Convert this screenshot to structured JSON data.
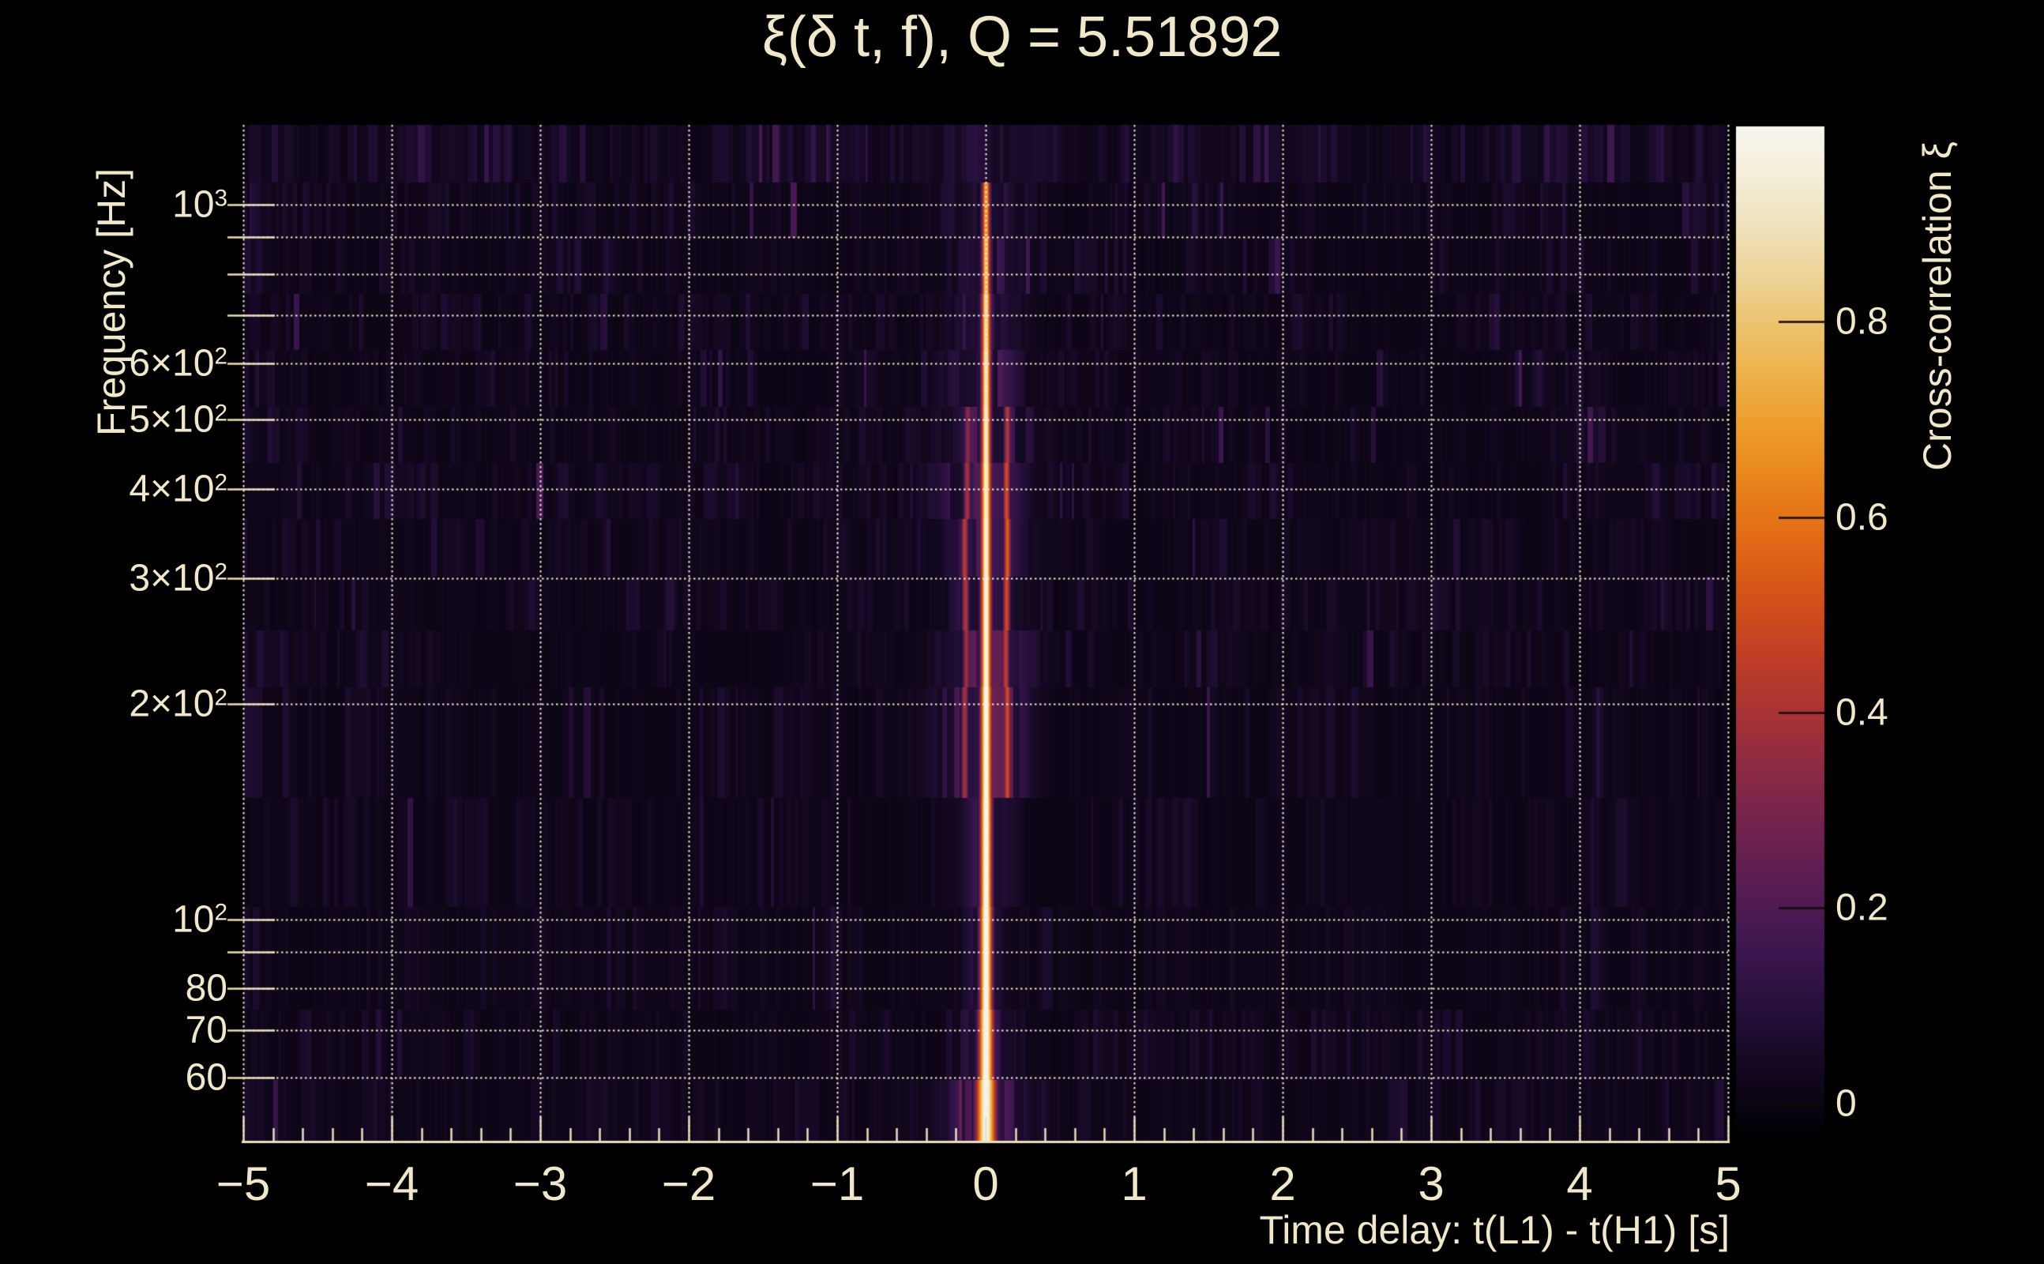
{
  "colors": {
    "background": "#000000",
    "text": "#f1e8cb",
    "grid": "#f4ecd2",
    "axis": "#eadfbd",
    "colorbar_tick": "#140a04"
  },
  "chart_data": {
    "type": "heatmap",
    "title": "ξ(δ t, f), Q = 5.51892",
    "q_value": 5.51892,
    "xlabel": "Time delay: t(L1) - t(H1) [s]",
    "ylabel": "Frequency [Hz]",
    "colorbar_label": "Cross-correlation ξ",
    "x_range": [
      -5,
      5
    ],
    "x_minor_step": 0.2,
    "x_ticks": [
      {
        "v": -5,
        "label": "−5"
      },
      {
        "v": -4,
        "label": "−4"
      },
      {
        "v": -3,
        "label": "−3"
      },
      {
        "v": -2,
        "label": "−2"
      },
      {
        "v": -1,
        "label": "−1"
      },
      {
        "v": 0,
        "label": "0"
      },
      {
        "v": 1,
        "label": "1"
      },
      {
        "v": 2,
        "label": "2"
      },
      {
        "v": 3,
        "label": "3"
      },
      {
        "v": 4,
        "label": "4"
      },
      {
        "v": 5,
        "label": "5"
      }
    ],
    "y_scale": "log",
    "y_range_hz": [
      49,
      1293
    ],
    "y_labeled_ticks": [
      {
        "f": 1000,
        "base": "10",
        "sup": "3"
      },
      {
        "f": 600,
        "base": "6×10",
        "sup": "2"
      },
      {
        "f": 500,
        "base": "5×10",
        "sup": "2"
      },
      {
        "f": 400,
        "base": "4×10",
        "sup": "2"
      },
      {
        "f": 300,
        "base": "3×10",
        "sup": "2"
      },
      {
        "f": 200,
        "base": "2×10",
        "sup": "2"
      },
      {
        "f": 100,
        "base": "10",
        "sup": "2"
      },
      {
        "f": 80,
        "base": "80",
        "sup": ""
      },
      {
        "f": 70,
        "base": "70",
        "sup": ""
      },
      {
        "f": 60,
        "base": "60",
        "sup": ""
      }
    ],
    "y_grid_hz": [
      60,
      70,
      80,
      90,
      100,
      200,
      300,
      400,
      500,
      600,
      700,
      800,
      900,
      1000
    ],
    "colorbar": {
      "vmin": -0.035,
      "vmax": 1.0,
      "ticks": [
        {
          "v": 0,
          "label": "0"
        },
        {
          "v": 0.2,
          "label": "0.2"
        },
        {
          "v": 0.4,
          "label": "0.4"
        },
        {
          "v": 0.6,
          "label": "0.6"
        },
        {
          "v": 0.8,
          "label": "0.8"
        }
      ]
    },
    "palette_stops": [
      {
        "v": -0.035,
        "c": "#000001"
      },
      {
        "v": 0.0,
        "c": "#0b0513"
      },
      {
        "v": 0.05,
        "c": "#170a27"
      },
      {
        "v": 0.1,
        "c": "#27103c"
      },
      {
        "v": 0.15,
        "c": "#3a164e"
      },
      {
        "v": 0.2,
        "c": "#4f1b53"
      },
      {
        "v": 0.25,
        "c": "#642051"
      },
      {
        "v": 0.3,
        "c": "#7a254c"
      },
      {
        "v": 0.35,
        "c": "#902b42"
      },
      {
        "v": 0.4,
        "c": "#a83336"
      },
      {
        "v": 0.45,
        "c": "#bd3d27"
      },
      {
        "v": 0.5,
        "c": "#cf4c1c"
      },
      {
        "v": 0.55,
        "c": "#dc5f16"
      },
      {
        "v": 0.6,
        "c": "#e57417"
      },
      {
        "v": 0.65,
        "c": "#ea8a1e"
      },
      {
        "v": 0.7,
        "c": "#eda02f"
      },
      {
        "v": 0.75,
        "c": "#eeb34e"
      },
      {
        "v": 0.8,
        "c": "#ecc472"
      },
      {
        "v": 0.85,
        "c": "#edd59a"
      },
      {
        "v": 0.9,
        "c": "#f0e3bd"
      },
      {
        "v": 0.95,
        "c": "#f4eeda"
      },
      {
        "v": 1.0,
        "c": "#f7f5f0"
      }
    ],
    "peak": {
      "time_delay_s": 0.0,
      "xi_max": 1.0,
      "extent_hz": [
        50,
        1290
      ],
      "description": "Narrow bright cross-correlation ridge at zero time delay spanning the full frequency band; background xi ~ 0-0.1 with Q-transform tile noise; faint satellite ridges near ±0.14 s between ~150-500 Hz."
    },
    "render": {
      "seed": 20,
      "rows": [
        {
          "y0": 158,
          "y1": 231,
          "base": 0.055,
          "hw": 95,
          "haze": 0.085,
          "core": 0.0,
          "sig": 6,
          "sats": []
        },
        {
          "y0": 231,
          "y1": 301,
          "base": 0.03,
          "hw": 62,
          "haze": 0.11,
          "core": 0.62,
          "sig": 5.5,
          "sats": []
        },
        {
          "y0": 301,
          "y1": 372,
          "base": 0.028,
          "hw": 45,
          "haze": 0.13,
          "core": 0.72,
          "sig": 5.5,
          "sats": []
        },
        {
          "y0": 372,
          "y1": 443,
          "base": 0.028,
          "hw": 42,
          "haze": 0.15,
          "core": 0.8,
          "sig": 6,
          "sats": []
        },
        {
          "y0": 443,
          "y1": 515,
          "base": 0.028,
          "hw": 50,
          "haze": 0.17,
          "core": 0.84,
          "sig": 6,
          "sats": []
        },
        {
          "y0": 515,
          "y1": 586,
          "base": 0.03,
          "hw": 55,
          "haze": 0.19,
          "core": 0.86,
          "sig": 6,
          "sats": [
            [
              27,
              0.42
            ],
            [
              -23,
              0.34
            ]
          ]
        },
        {
          "y0": 586,
          "y1": 657,
          "base": 0.032,
          "hw": 60,
          "haze": 0.21,
          "core": 0.88,
          "sig": 6.5,
          "sats": [
            [
              26,
              0.5
            ],
            [
              -24,
              0.4
            ]
          ]
        },
        {
          "y0": 657,
          "y1": 730,
          "base": 0.03,
          "hw": 48,
          "haze": 0.19,
          "core": 0.9,
          "sig": 6.5,
          "sats": [
            [
              27,
              0.55
            ],
            [
              -27,
              0.45
            ]
          ]
        },
        {
          "y0": 730,
          "y1": 798,
          "base": 0.028,
          "hw": 42,
          "haze": 0.17,
          "core": 0.92,
          "sig": 6.5,
          "sats": [
            [
              26,
              0.5
            ],
            [
              -26,
              0.42
            ]
          ]
        },
        {
          "y0": 798,
          "y1": 870,
          "base": 0.028,
          "hw": 58,
          "haze": 0.2,
          "core": 0.92,
          "sig": 6.5,
          "sats": [
            [
              25,
              0.46
            ],
            [
              -25,
              0.38
            ]
          ]
        },
        {
          "y0": 870,
          "y1": 1010,
          "base": 0.028,
          "hw": 52,
          "haze": 0.26,
          "core": 0.95,
          "sig": 7,
          "sats": [
            [
              27,
              0.5
            ],
            [
              -27,
              0.4
            ]
          ]
        },
        {
          "y0": 1010,
          "y1": 1148,
          "base": 0.024,
          "hw": 36,
          "haze": 0.14,
          "core": 0.99,
          "sig": 7,
          "sats": []
        },
        {
          "y0": 1148,
          "y1": 1278,
          "base": 0.024,
          "hw": 30,
          "haze": 0.11,
          "core": 1.0,
          "sig": 7.5,
          "sats": []
        },
        {
          "y0": 1278,
          "y1": 1367,
          "base": 0.028,
          "hw": 34,
          "haze": 0.16,
          "core": 1.0,
          "sig": 9,
          "sats": []
        },
        {
          "y0": 1367,
          "y1": 1444,
          "base": 0.03,
          "hw": 46,
          "haze": 0.3,
          "core": 1.0,
          "sig": 12,
          "sats": []
        }
      ]
    }
  }
}
